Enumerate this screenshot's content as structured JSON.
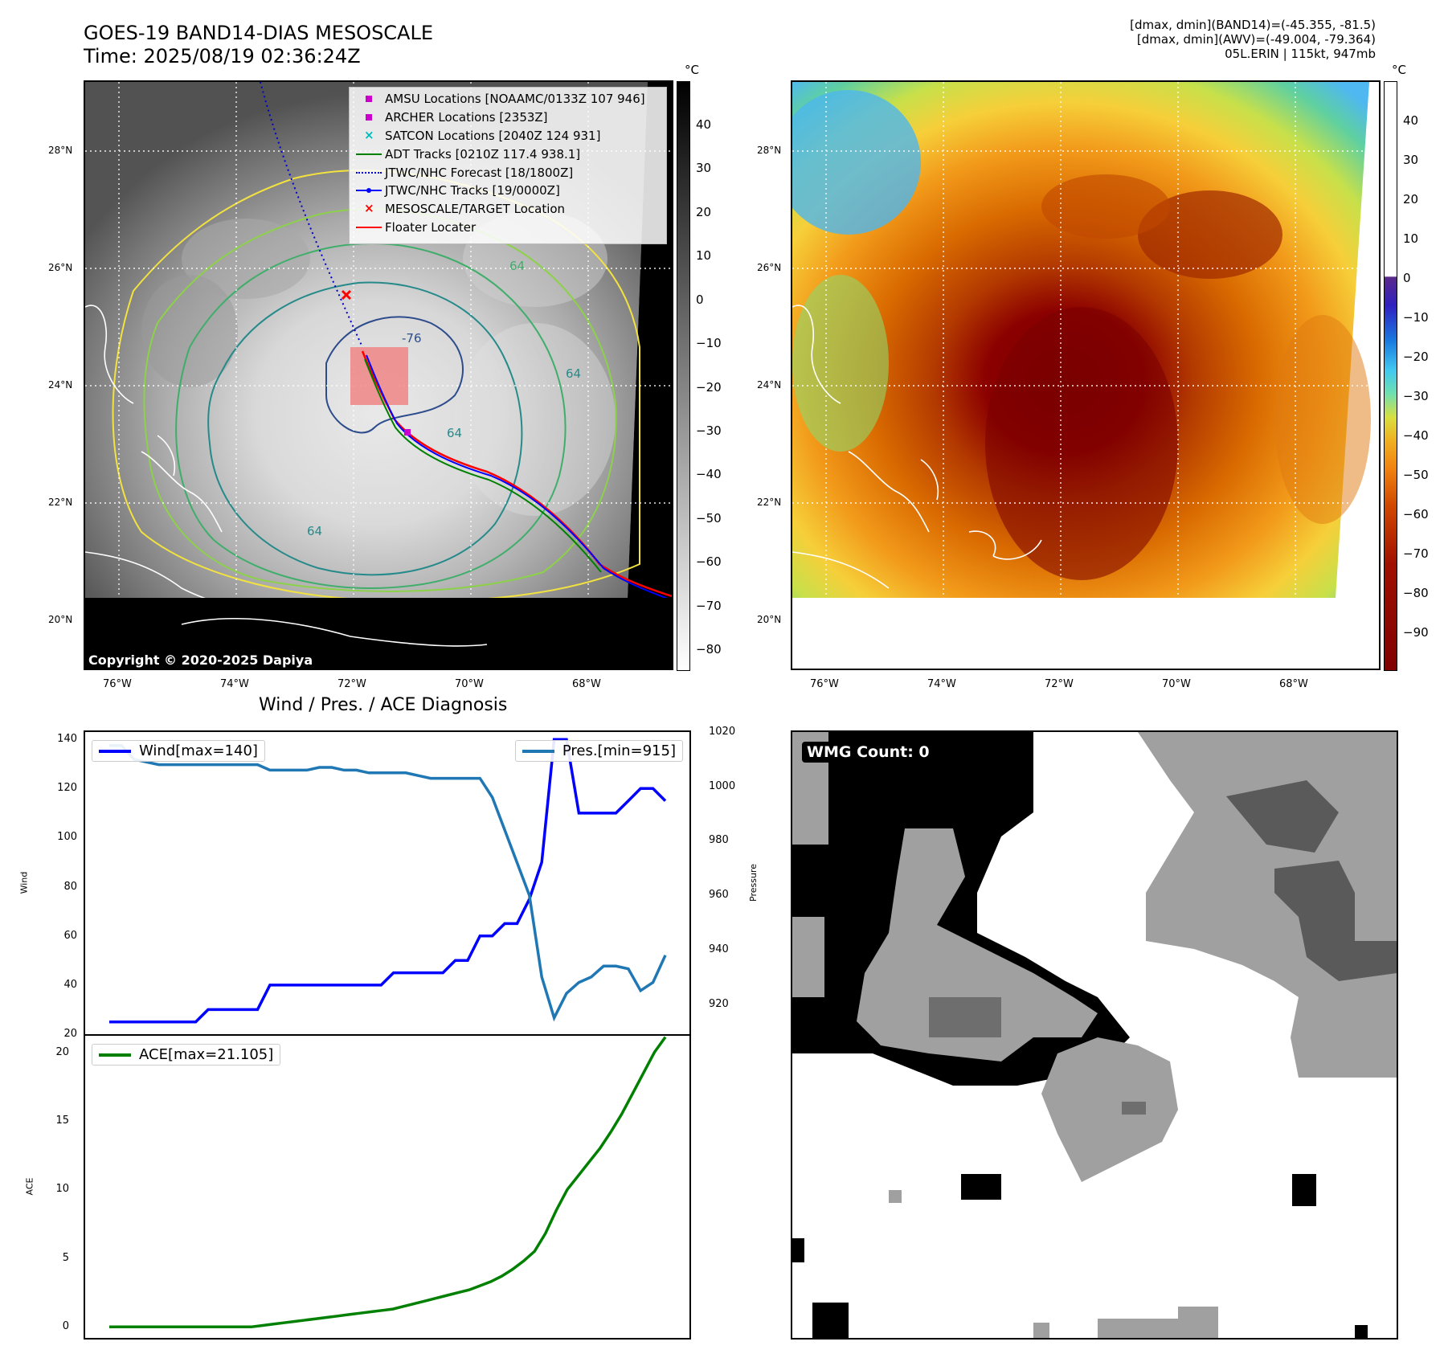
{
  "header": {
    "title": "GOES-19 BAND14-DIAS MESOSCALE",
    "time": "Time: 2025/08/19 02:36:24Z",
    "info": [
      "[dmax, dmin](BAND14)=(-45.355, -81.5)",
      "[dmax, dmin](AWV)=(-49.004, -79.364)",
      "05L.ERIN | 115kt, 947mb"
    ]
  },
  "map": {
    "lat_labels": [
      "28°N",
      "26°N",
      "24°N",
      "22°N",
      "20°N"
    ],
    "lon_labels": [
      "76°W",
      "74°W",
      "72°W",
      "70°W",
      "68°W"
    ],
    "copyright": "Copyright © 2020-2025 Dapiya",
    "contour_labels": [
      "-76",
      "64",
      "64",
      "64",
      "64"
    ],
    "legend": [
      {
        "label": "AMSU Locations [NOAAMC/0133Z 107 946]",
        "color": "#cc00cc",
        "icon": "square-marker"
      },
      {
        "label": "ARCHER Locations [2353Z]",
        "color": "#cc00cc",
        "icon": "square-marker"
      },
      {
        "label": "SATCON Locations [2040Z 124 931]",
        "color": "#00bbbb",
        "icon": "x-marker"
      },
      {
        "label": "ADT Tracks [0210Z 117.4 938.1]",
        "color": "#008000",
        "icon": "line"
      },
      {
        "label": "JTWC/NHC Forecast [18/1800Z]",
        "color": "#0000cc",
        "icon": "dotted-line"
      },
      {
        "label": "JTWC/NHC Tracks [19/0000Z]",
        "color": "#0000ff",
        "icon": "line-dot"
      },
      {
        "label": "MESOSCALE/TARGET Location",
        "color": "#ff0000",
        "icon": "x-marker"
      },
      {
        "label": "Floater Locater",
        "color": "#ff0000",
        "icon": "line"
      }
    ]
  },
  "colorbar_gray": {
    "unit": "°C",
    "ticks": [
      "40",
      "30",
      "20",
      "10",
      "0",
      "−10",
      "−20",
      "−30",
      "−40",
      "−50",
      "−60",
      "−70",
      "−80"
    ]
  },
  "colorbar_color": {
    "unit": "°C",
    "ticks": [
      "40",
      "30",
      "20",
      "10",
      "0",
      "−10",
      "−20",
      "−30",
      "−40",
      "−50",
      "−60",
      "−70",
      "−80",
      "−90"
    ]
  },
  "wmg": {
    "label": "WMG Count: 0"
  },
  "chart_data": [
    {
      "type": "line",
      "title": "Wind / Pres. / ACE Diagnosis",
      "ylabel": "Wind",
      "y2label": "Pressure",
      "ylim": [
        20,
        143
      ],
      "y2lim": [
        909,
        1020
      ],
      "yticks": [
        "140",
        "120",
        "100",
        "80",
        "60",
        "40",
        "20"
      ],
      "y2ticks": [
        "1020",
        "1000",
        "980",
        "960",
        "940",
        "920"
      ],
      "series": [
        {
          "name": "Wind[max=140]",
          "color": "#0000ff",
          "axis": "left",
          "values": [
            25,
            25,
            25,
            25,
            25,
            25,
            25,
            25,
            30,
            30,
            30,
            30,
            30,
            40,
            40,
            40,
            40,
            40,
            40,
            40,
            40,
            40,
            40,
            45,
            45,
            45,
            45,
            45,
            50,
            50,
            60,
            60,
            65,
            65,
            75,
            90,
            140,
            140,
            110,
            110,
            110,
            110,
            115,
            120,
            120,
            115
          ]
        },
        {
          "name": "Pres.[min=915]",
          "color": "#1f77b4",
          "axis": "right",
          "values": [
            1015,
            1015,
            1010,
            1009,
            1008,
            1008,
            1008,
            1008,
            1008,
            1008,
            1008,
            1008,
            1008,
            1006,
            1006,
            1006,
            1006,
            1007,
            1007,
            1006,
            1006,
            1005,
            1005,
            1005,
            1005,
            1004,
            1003,
            1003,
            1003,
            1003,
            1003,
            996,
            984,
            972,
            960,
            930,
            915,
            924,
            928,
            930,
            934,
            934,
            933,
            925,
            928,
            938
          ]
        }
      ]
    },
    {
      "type": "line",
      "ylabel": "ACE",
      "ylim": [
        -0.8,
        21.2
      ],
      "yticks": [
        "20",
        "15",
        "10",
        "5",
        "0"
      ],
      "series": [
        {
          "name": "ACE[max=21.105]",
          "color": "#008000",
          "values": [
            0,
            0,
            0,
            0,
            0,
            0,
            0,
            0,
            0,
            0,
            0,
            0,
            0,
            0,
            0.1,
            0.2,
            0.3,
            0.4,
            0.5,
            0.6,
            0.7,
            0.8,
            0.9,
            1.0,
            1.1,
            1.2,
            1.3,
            1.5,
            1.7,
            1.9,
            2.1,
            2.3,
            2.5,
            2.7,
            3.0,
            3.3,
            3.7,
            4.2,
            4.8,
            5.5,
            6.8,
            8.5,
            10.0,
            11.0,
            12.0,
            13.0,
            14.2,
            15.5,
            17.0,
            18.5,
            20.0,
            21.105
          ]
        }
      ]
    }
  ]
}
